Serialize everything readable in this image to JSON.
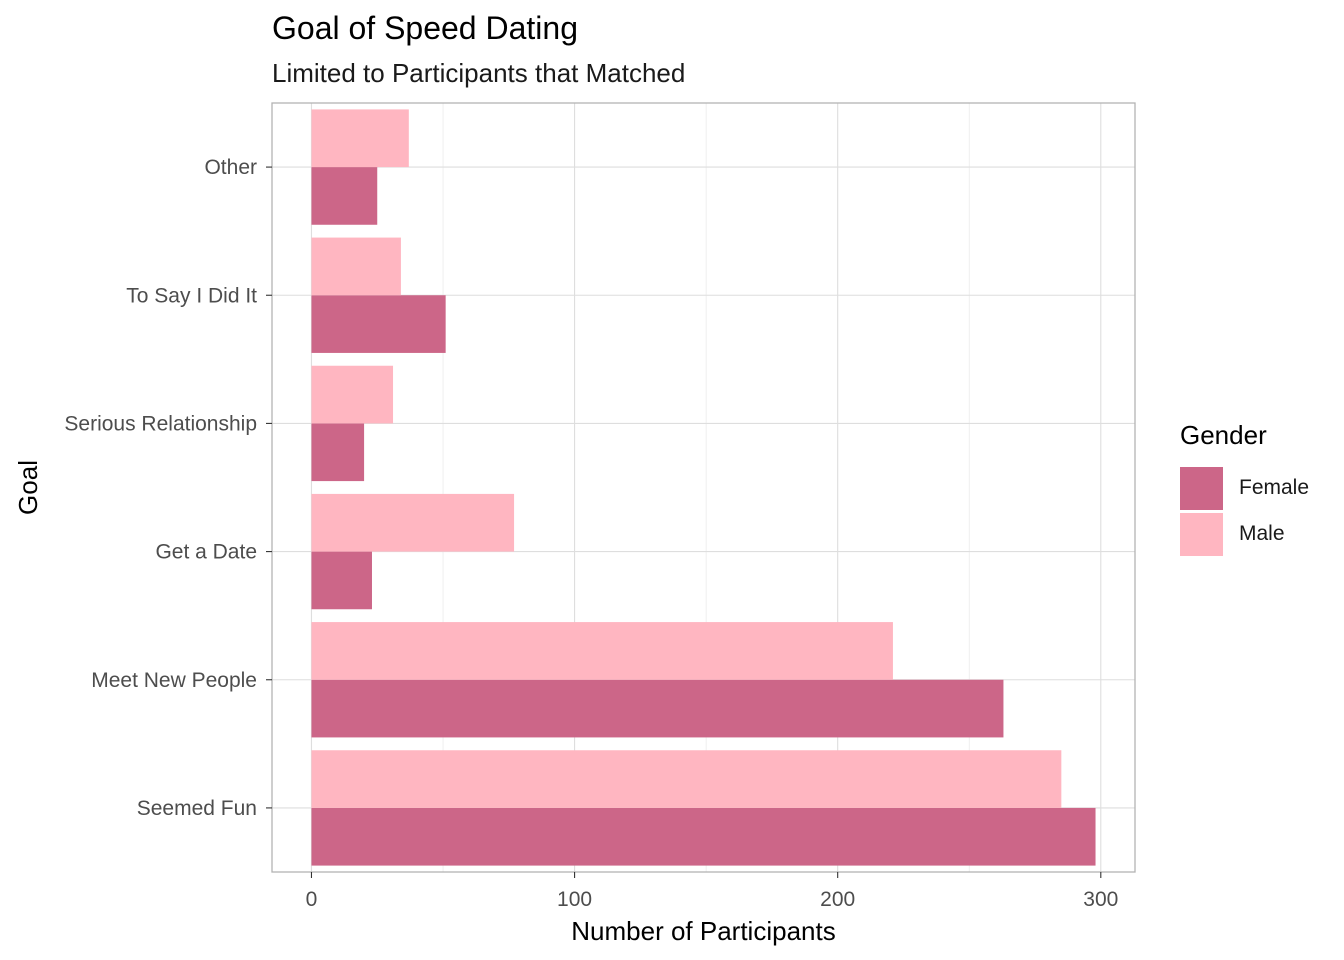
{
  "chart_data": {
    "type": "bar",
    "orientation": "horizontal",
    "title": "Goal of Speed Dating",
    "subtitle": "Limited to Participants that Matched",
    "xlabel": "Number of Participants",
    "ylabel": "Goal",
    "categories": [
      "Seemed Fun",
      "Meet New People",
      "Get a Date",
      "Serious Relationship",
      "To Say I Did It",
      "Other"
    ],
    "series": [
      {
        "name": "Female",
        "color": "#cc6688",
        "values": [
          298,
          263,
          23,
          20,
          51,
          25
        ]
      },
      {
        "name": "Male",
        "color": "#ffb6c1",
        "values": [
          285,
          221,
          77,
          31,
          34,
          37
        ]
      }
    ],
    "xlim": [
      -15,
      313
    ],
    "xticks": [
      0,
      100,
      200,
      300
    ],
    "xtick_labels": [
      "0",
      "100",
      "200",
      "300"
    ],
    "grid": true,
    "legend": {
      "title": "Gender",
      "placement": "right",
      "items": [
        {
          "label": "Female",
          "color": "#cc6688"
        },
        {
          "label": "Male",
          "color": "#ffb6c1"
        }
      ]
    }
  }
}
